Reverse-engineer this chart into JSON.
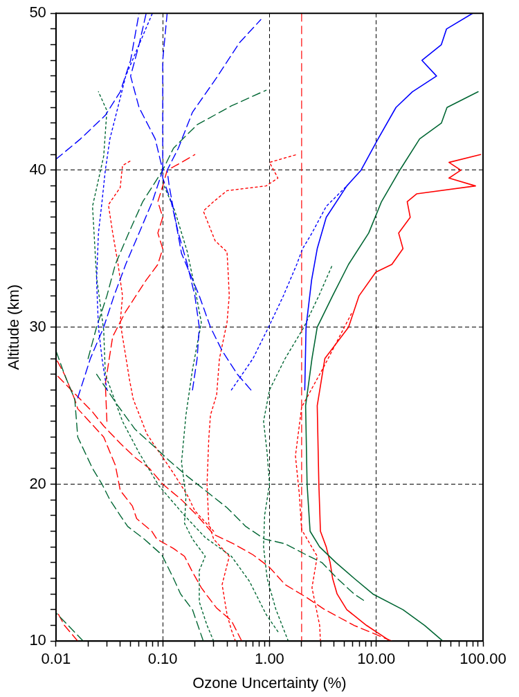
{
  "chart_data": {
    "type": "line",
    "xlabel": "Ozone Uncertainty (%)",
    "ylabel": "Altitude (km)",
    "log": "x",
    "grid": true,
    "xlim": [
      0.01,
      100
    ],
    "ylim": [
      10,
      50
    ],
    "xticks": [
      {
        "value": 0.01,
        "label": "0.01"
      },
      {
        "value": 0.02,
        "label": null
      },
      {
        "value": 0.03,
        "label": null
      },
      {
        "value": 0.04,
        "label": null
      },
      {
        "value": 0.05,
        "label": null
      },
      {
        "value": 0.06,
        "label": null
      },
      {
        "value": 0.07,
        "label": null
      },
      {
        "value": 0.08,
        "label": null
      },
      {
        "value": 0.09,
        "label": null
      },
      {
        "value": 0.1,
        "label": "0.10"
      },
      {
        "value": 0.2,
        "label": null
      },
      {
        "value": 0.3,
        "label": null
      },
      {
        "value": 0.4,
        "label": null
      },
      {
        "value": 0.5,
        "label": null
      },
      {
        "value": 0.6,
        "label": null
      },
      {
        "value": 0.7,
        "label": null
      },
      {
        "value": 0.8,
        "label": null
      },
      {
        "value": 0.9,
        "label": null
      },
      {
        "value": 1,
        "label": "1.00"
      },
      {
        "value": 2,
        "label": null
      },
      {
        "value": 3,
        "label": null
      },
      {
        "value": 4,
        "label": null
      },
      {
        "value": 5,
        "label": null
      },
      {
        "value": 6,
        "label": null
      },
      {
        "value": 7,
        "label": null
      },
      {
        "value": 8,
        "label": null
      },
      {
        "value": 9,
        "label": null
      },
      {
        "value": 10,
        "label": "10.00"
      },
      {
        "value": 20,
        "label": null
      },
      {
        "value": 30,
        "label": null
      },
      {
        "value": 40,
        "label": null
      },
      {
        "value": 50,
        "label": null
      },
      {
        "value": 60,
        "label": null
      },
      {
        "value": 70,
        "label": null
      },
      {
        "value": 80,
        "label": null
      },
      {
        "value": 90,
        "label": null
      },
      {
        "value": 100,
        "label": "100.00"
      }
    ],
    "yticks": [
      10,
      {
        "value": 11,
        "label": null
      },
      {
        "value": 12,
        "label": null
      },
      {
        "value": 13,
        "label": null
      },
      {
        "value": 14,
        "label": null
      },
      {
        "value": 15,
        "label": null
      },
      {
        "value": 16,
        "label": null
      },
      {
        "value": 17,
        "label": null
      },
      {
        "value": 18,
        "label": null
      },
      {
        "value": 19,
        "label": null
      },
      20,
      {
        "value": 21,
        "label": null
      },
      {
        "value": 22,
        "label": null
      },
      {
        "value": 23,
        "label": null
      },
      {
        "value": 24,
        "label": null
      },
      {
        "value": 25,
        "label": null
      },
      {
        "value": 26,
        "label": null
      },
      {
        "value": 27,
        "label": null
      },
      {
        "value": 28,
        "label": null
      },
      {
        "value": 29,
        "label": null
      },
      30,
      {
        "value": 31,
        "label": null
      },
      {
        "value": 32,
        "label": null
      },
      {
        "value": 33,
        "label": null
      },
      {
        "value": 34,
        "label": null
      },
      {
        "value": 35,
        "label": null
      },
      {
        "value": 36,
        "label": null
      },
      {
        "value": 37,
        "label": null
      },
      {
        "value": 38,
        "label": null
      },
      {
        "value": 39,
        "label": null
      },
      40,
      {
        "value": 41,
        "label": null
      },
      {
        "value": 42,
        "label": null
      },
      {
        "value": 43,
        "label": null
      },
      {
        "value": 44,
        "label": null
      },
      {
        "value": 45,
        "label": null
      },
      {
        "value": 46,
        "label": null
      },
      {
        "value": 47,
        "label": null
      },
      {
        "value": 48,
        "label": null
      },
      {
        "value": 49,
        "label": null
      },
      50
    ],
    "ref_lines": [
      {
        "axis": "x",
        "value": 2,
        "color": "#ff0000",
        "line_style": "dashed"
      }
    ],
    "series": [
      {
        "color": "#0000ff",
        "line_style": "solid",
        "x": [
          2.14,
          2.2,
          2.48,
          2.8,
          3.4,
          5.3,
          7.2,
          10.4,
          15.3,
          21.8,
          36.7,
          26.8,
          40.7,
          45.5,
          80
        ],
        "values": [
          26,
          30,
          33,
          35,
          37,
          39,
          40,
          42,
          44,
          45,
          46,
          47,
          48,
          49,
          50
        ]
      },
      {
        "color": "#0000ff",
        "line_style": "dotted",
        "x": [
          0.44,
          0.7,
          0.98,
          1.35,
          1.8,
          2.04,
          2.5,
          3.4,
          5.3
        ],
        "values": [
          26,
          28,
          30,
          32,
          34,
          35,
          36,
          37.7,
          39
        ]
      },
      {
        "color": "#0000ff",
        "line_style": "dashed",
        "x": [
          0.67,
          0.5,
          0.36,
          0.28,
          0.22,
          0.15,
          0.13,
          0.115,
          0.11,
          0.14,
          0.19,
          0.32,
          0.52,
          0.83
        ],
        "values": [
          26,
          27,
          28.5,
          30,
          32,
          34.7,
          37,
          39,
          40,
          41.4,
          43.7,
          45.9,
          48.1,
          49.6
        ]
      },
      {
        "color": "#0000ff",
        "line_style": "dashed",
        "x": [
          0.19,
          0.21,
          0.22,
          0.2,
          0.17,
          0.14,
          0.12,
          0.1,
          0.1,
          0.1,
          0.1,
          0.11
        ],
        "values": [
          26,
          28,
          30,
          32,
          34,
          36,
          38,
          39.5,
          41,
          44,
          47,
          50
        ]
      },
      {
        "color": "#0000ff",
        "line_style": "dashed",
        "x": [
          0.016,
          0.021,
          0.028,
          0.035,
          0.045,
          0.06,
          0.08,
          0.1,
          0.085,
          0.06,
          0.05,
          0.06,
          0.07
        ],
        "values": [
          25.5,
          28,
          30,
          32,
          34,
          36,
          38,
          40,
          42,
          44,
          46,
          48,
          50
        ]
      },
      {
        "color": "#0000ff",
        "line_style": "dotted",
        "x": [
          0.03,
          0.027,
          0.025,
          0.024,
          0.025,
          0.027,
          0.029,
          0.032,
          0.038,
          0.045,
          0.06,
          0.08
        ],
        "values": [
          26,
          28,
          30,
          33,
          36,
          38,
          40,
          42,
          44,
          46,
          48,
          50
        ]
      },
      {
        "color": "#0000ff",
        "line_style": "dashed",
        "x": [
          0.01,
          0.017,
          0.029,
          0.04,
          0.05,
          0.06
        ],
        "values": [
          40.7,
          42,
          43.5,
          45,
          47,
          50
        ]
      },
      {
        "color": "#006633",
        "line_style": "solid",
        "x": [
          42,
          28.4,
          17.8,
          9.3,
          6.2,
          4.2,
          2.95,
          2.4,
          2.25,
          2.18,
          2.5,
          2.8,
          3.9,
          5.5,
          8.5,
          11.2,
          16.6,
          25.5,
          40.7,
          46,
          90
        ],
        "values": [
          10,
          11,
          12,
          13,
          14,
          15,
          16,
          17,
          20,
          25,
          28,
          30,
          32,
          34,
          36,
          38,
          40,
          42,
          43,
          44,
          45
        ]
      },
      {
        "color": "#006633",
        "line_style": "dotted",
        "x": [
          1.5,
          1.15,
          0.95,
          0.88,
          0.9,
          1.0,
          0.95,
          0.88,
          1.0,
          1.4,
          2.1,
          2.9,
          3.9
        ],
        "values": [
          10,
          12,
          14,
          16,
          18,
          20,
          22,
          24,
          26,
          28,
          30,
          32,
          34
        ]
      },
      {
        "color": "#006633",
        "line_style": "dashed",
        "x": [
          0.24,
          0.19,
          0.147,
          0.126,
          0.098,
          0.067,
          0.047,
          0.04,
          0.032,
          0.027,
          0.022,
          0.016,
          0.015,
          0.012,
          0.01
        ],
        "values": [
          10,
          12,
          13,
          14,
          15.5,
          16.5,
          17.3,
          18,
          19,
          20,
          21,
          23,
          25.4,
          27,
          28.5
        ]
      },
      {
        "color": "#006633",
        "line_style": "dashed",
        "x": [
          7.6,
          6.2,
          4.3,
          3.1,
          2.2,
          1.4,
          0.9,
          0.6,
          0.4,
          0.17,
          0.115,
          0.08,
          0.055,
          0.038,
          0.024
        ],
        "values": [
          12.6,
          13,
          14,
          15,
          15.5,
          16.2,
          16.5,
          17.3,
          18.5,
          20.5,
          21.5,
          22.5,
          23.5,
          25,
          27
        ]
      },
      {
        "color": "#006633",
        "line_style": "dashed",
        "x": [
          0.02,
          0.024,
          0.03,
          0.036,
          0.048,
          0.065,
          0.1,
          0.126,
          0.21,
          0.44,
          0.93
        ],
        "values": [
          28,
          30,
          32,
          34,
          36,
          38,
          40,
          41.4,
          42.9,
          44.1,
          45.1
        ]
      },
      {
        "color": "#006633",
        "line_style": "dotted",
        "x": [
          0.3,
          0.26,
          0.22,
          0.22,
          0.25,
          0.19,
          0.16,
          0.165,
          0.15,
          0.165,
          0.19,
          0.23,
          0.2,
          0.17,
          0.13,
          0.1
        ],
        "values": [
          10,
          11,
          12.5,
          14.5,
          15.4,
          16.5,
          17.5,
          19.2,
          21.4,
          24.4,
          27.3,
          30.3,
          32.5,
          34.8,
          37.4,
          39.2
        ]
      },
      {
        "color": "#006633",
        "line_style": "dotted",
        "x": [
          1.2,
          0.93,
          0.65,
          0.44,
          0.25,
          0.16,
          0.092,
          0.06,
          0.042,
          0.029,
          0.028,
          0.024,
          0.022,
          0.028,
          0.03,
          0.025
        ],
        "values": [
          10.6,
          11.7,
          13.8,
          15.4,
          16.6,
          18,
          19.9,
          22,
          24,
          27,
          29.8,
          33.2,
          37.7,
          40.9,
          43.8,
          45
        ]
      },
      {
        "color": "#006633",
        "line_style": "dashed",
        "x": [
          0.018,
          0.013,
          0.01
        ],
        "values": [
          10,
          11,
          11.8
        ]
      },
      {
        "color": "#ff0000",
        "line_style": "solid",
        "x": [
          13.5,
          8.1,
          5.3,
          4.3,
          3.9,
          3.7,
          3.4,
          3.0,
          2.9,
          2.8,
          3.3,
          5.5,
          6.9,
          9.9,
          14,
          17.8,
          16.2,
          20.8,
          19.5,
          24,
          85,
          48,
          62,
          48,
          95
        ],
        "values": [
          10,
          11,
          12,
          13,
          14,
          15,
          16,
          17,
          20,
          25,
          28,
          30,
          32,
          33.5,
          34,
          35,
          36,
          37,
          38,
          38.5,
          39,
          39.5,
          40,
          40.5,
          41
        ]
      },
      {
        "color": "#ff0000",
        "line_style": "dotted",
        "x": [
          3.0,
          2.95,
          2.5,
          2.8,
          2.0,
          1.9,
          1.75,
          2.0,
          3.3,
          5.3,
          6
        ],
        "values": [
          10,
          11,
          13.4,
          15.4,
          17.1,
          19.4,
          21.8,
          24.9,
          27.6,
          30.3,
          31
        ]
      },
      {
        "color": "#ff0000",
        "line_style": "dashed",
        "x": [
          14,
          6.2,
          3.3,
          2.2,
          1.4,
          1.0,
          0.7,
          0.46,
          0.3,
          0.21,
          0.15,
          0.1,
          0.075,
          0.055,
          0.04,
          0.028,
          0.022,
          0.01
        ],
        "values": [
          10,
          11,
          12,
          12.8,
          13.6,
          14.7,
          15.5,
          16.2,
          16.8,
          18,
          19,
          20,
          21,
          21.7,
          22.6,
          23.7,
          24.6,
          27
        ]
      },
      {
        "color": "#ff0000",
        "line_style": "dashed",
        "x": [
          0.55,
          0.44,
          0.32,
          0.26,
          0.23,
          0.19,
          0.16,
          0.126,
          0.088,
          0.079,
          0.057,
          0.052,
          0.04,
          0.036,
          0.028,
          0.016,
          0.015,
          0.012,
          0.01
        ],
        "values": [
          10,
          11.3,
          12.1,
          12.9,
          13.4,
          14.4,
          15.4,
          15.9,
          16.5,
          17,
          17.8,
          18.6,
          19.6,
          21.2,
          23,
          24.8,
          25.4,
          27,
          28
        ]
      },
      {
        "color": "#ff0000",
        "line_style": "dotted",
        "x": [
          0.48,
          0.44,
          0.4,
          0.36,
          0.42,
          0.3,
          0.27,
          0.26,
          0.27,
          0.28,
          0.32,
          0.34,
          0.4,
          0.42,
          0.41,
          0.4,
          0.31,
          0.24,
          0.3,
          0.4,
          0.93,
          1.2,
          1.0,
          1.8
        ],
        "values": [
          10,
          10.7,
          11.7,
          13.6,
          15.4,
          16.5,
          17.5,
          20,
          22.9,
          24.4,
          25.7,
          28,
          30.3,
          32,
          33.5,
          34.8,
          35.5,
          37.4,
          38,
          38.7,
          39,
          39.5,
          40.5,
          41
        ]
      },
      {
        "color": "#ff0000",
        "line_style": "dotted",
        "x": [
          0.3,
          0.2,
          0.17,
          0.126,
          0.1,
          0.083,
          0.071,
          0.053,
          0.049,
          0.04,
          0.042,
          0.038,
          0.034,
          0.031,
          0.04,
          0.042,
          0.05
        ],
        "values": [
          17,
          18.3,
          19.3,
          20.7,
          21.7,
          22.5,
          23.2,
          25.4,
          26.6,
          30.3,
          32,
          34.1,
          36,
          37.8,
          38.9,
          40.3,
          40.6
        ]
      },
      {
        "color": "#ff0000",
        "line_style": "dashed",
        "x": [
          0.03,
          0.029,
          0.034,
          0.045,
          0.07,
          0.09,
          0.1,
          0.09,
          0.1,
          0.09,
          0.1,
          0.11,
          0.15,
          0.2
        ],
        "values": [
          24,
          26.4,
          29.4,
          31,
          33,
          34,
          35,
          36,
          37,
          38,
          39,
          40,
          40.5,
          41
        ]
      },
      {
        "color": "#ff0000",
        "line_style": "dashed",
        "x": [
          0.016,
          0.012,
          0.01
        ],
        "values": [
          10,
          11,
          12
        ]
      }
    ]
  }
}
